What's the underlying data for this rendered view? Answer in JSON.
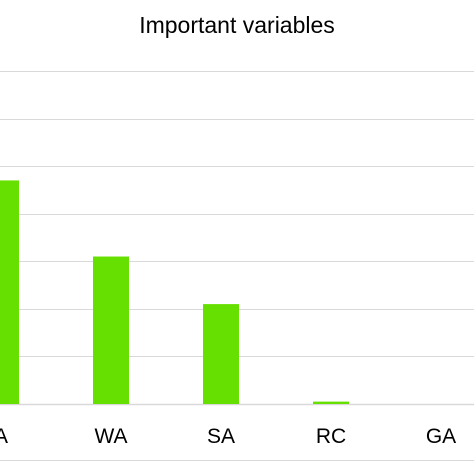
{
  "colors": {
    "bar": "#66e000",
    "grid": "#d9d9d9",
    "text": "#000000"
  },
  "chart_data": {
    "type": "bar",
    "title": "Important variables",
    "categories": [
      "A",
      "WA",
      "SA",
      "RC",
      "GA"
    ],
    "values": [
      0.47,
      0.31,
      0.21,
      0.005,
      0
    ],
    "ylim": [
      0,
      0.7
    ],
    "grid": true,
    "legend": "none",
    "xlabel": "",
    "ylabel": ""
  }
}
